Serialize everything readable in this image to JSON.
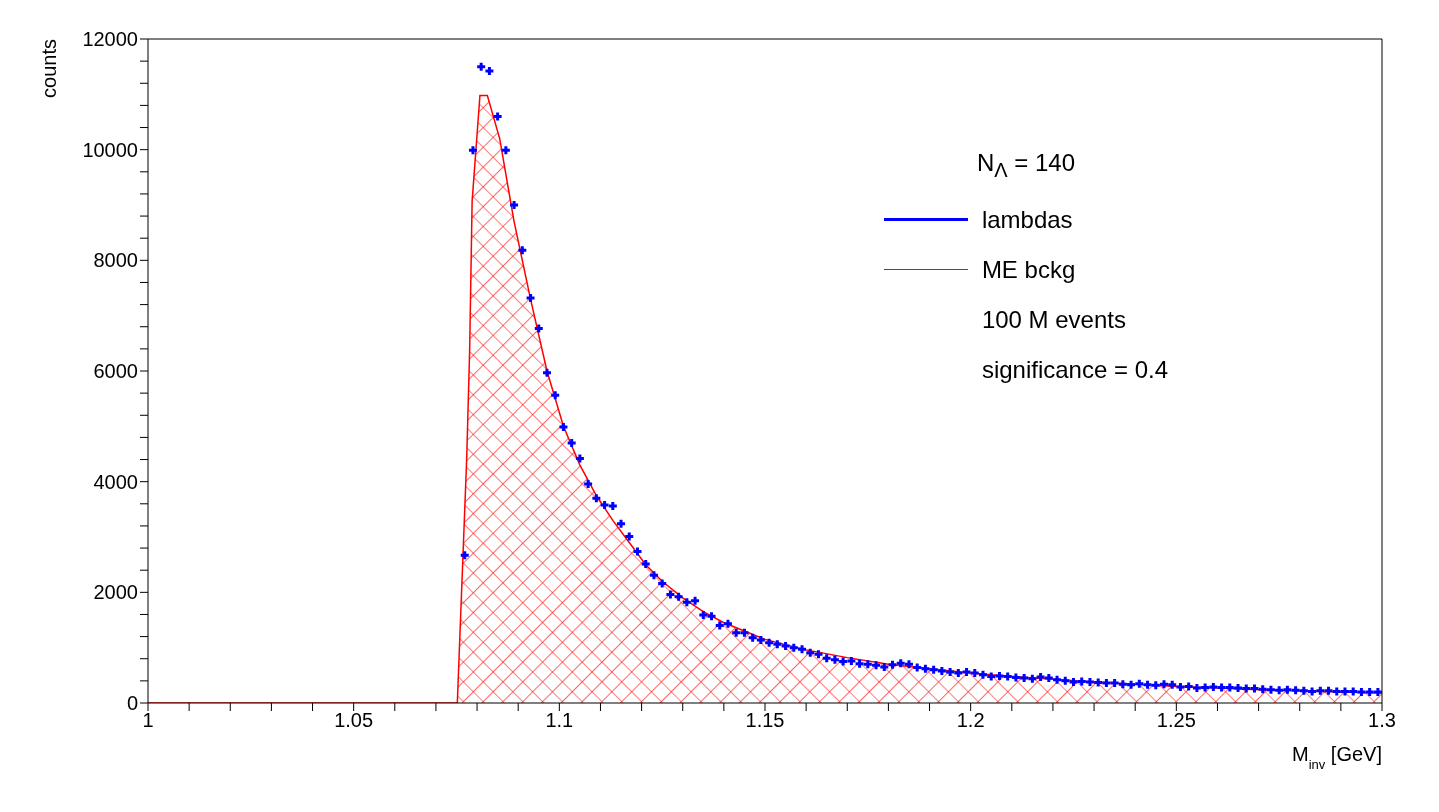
{
  "chart_data": {
    "type": "area",
    "xlabel": "M$_{inv}$ [GeV]",
    "ylabel": "counts",
    "xlim": [
      1,
      1.3
    ],
    "xticks": [
      1,
      {
        "value": 1.01,
        "label": null
      },
      {
        "value": 1.02,
        "label": null
      },
      {
        "value": 1.03,
        "label": null
      },
      {
        "value": 1.04,
        "label": null
      },
      1.05,
      {
        "value": 1.06,
        "label": null
      },
      {
        "value": 1.07,
        "label": null
      },
      {
        "value": 1.08,
        "label": null
      },
      {
        "value": 1.09,
        "label": null
      },
      1.1,
      {
        "value": 1.11,
        "label": null
      },
      {
        "value": 1.12,
        "label": null
      },
      {
        "value": 1.13,
        "label": null
      },
      {
        "value": 1.14,
        "label": null
      },
      1.15,
      {
        "value": 1.16,
        "label": null
      },
      {
        "value": 1.17,
        "label": null
      },
      {
        "value": 1.18,
        "label": null
      },
      {
        "value": 1.19,
        "label": null
      },
      1.2,
      {
        "value": 1.21,
        "label": null
      },
      {
        "value": 1.22,
        "label": null
      },
      {
        "value": 1.23,
        "label": null
      },
      {
        "value": 1.24,
        "label": null
      },
      1.25,
      {
        "value": 1.26,
        "label": null
      },
      {
        "value": 1.27,
        "label": null
      },
      {
        "value": 1.28,
        "label": null
      },
      {
        "value": 1.29,
        "label": null
      },
      1.3
    ],
    "ylim": [
      0,
      12000
    ],
    "yticks": [
      0,
      {
        "value": 400,
        "label": null
      },
      {
        "value": 800,
        "label": null
      },
      {
        "value": 1200,
        "label": null
      },
      {
        "value": 1600,
        "label": null
      },
      2000,
      {
        "value": 2400,
        "label": null
      },
      {
        "value": 2800,
        "label": null
      },
      {
        "value": 3200,
        "label": null
      },
      {
        "value": 3600,
        "label": null
      },
      4000,
      {
        "value": 4400,
        "label": null
      },
      {
        "value": 4800,
        "label": null
      },
      {
        "value": 5200,
        "label": null
      },
      {
        "value": 5600,
        "label": null
      },
      6000,
      {
        "value": 6400,
        "label": null
      },
      {
        "value": 6800,
        "label": null
      },
      {
        "value": 7200,
        "label": null
      },
      {
        "value": 7600,
        "label": null
      },
      8000,
      {
        "value": 8400,
        "label": null
      },
      {
        "value": 8800,
        "label": null
      },
      {
        "value": 9200,
        "label": null
      },
      {
        "value": 9600,
        "label": null
      },
      10000,
      {
        "value": 10400,
        "label": null
      },
      {
        "value": 10800,
        "label": null
      },
      {
        "value": 11200,
        "label": null
      },
      {
        "value": 11600,
        "label": null
      },
      12000
    ],
    "legend": "top right",
    "annotations": [
      "N$_{Λ}$ = 140",
      "100 M events",
      "significance = 0.4"
    ],
    "series": [
      {
        "type": "scatter",
        "name": "lambdas",
        "color": "#0000ff",
        "marker": "cross",
        "x": [
          1.077,
          1.079,
          1.081,
          1.083,
          1.085,
          1.087,
          1.089,
          1.091,
          1.093,
          1.095,
          1.097,
          1.099,
          1.101,
          1.103,
          1.105,
          1.107,
          1.109,
          1.111,
          1.113,
          1.115,
          1.117,
          1.119,
          1.121,
          1.123,
          1.125,
          1.127,
          1.129,
          1.131,
          1.133,
          1.135,
          1.137,
          1.139,
          1.141,
          1.143,
          1.145,
          1.147,
          1.149,
          1.151,
          1.153,
          1.155,
          1.157,
          1.159,
          1.161,
          1.163,
          1.165,
          1.167,
          1.169,
          1.171,
          1.173,
          1.175,
          1.177,
          1.179,
          1.181,
          1.183,
          1.185,
          1.187,
          1.189,
          1.191,
          1.193,
          1.195,
          1.197,
          1.199,
          1.201,
          1.203,
          1.205,
          1.207,
          1.209,
          1.211,
          1.213,
          1.215,
          1.217,
          1.219,
          1.221,
          1.223,
          1.225,
          1.227,
          1.229,
          1.231,
          1.233,
          1.235,
          1.237,
          1.239,
          1.241,
          1.243,
          1.245,
          1.247,
          1.249,
          1.251,
          1.253,
          1.255,
          1.257,
          1.259,
          1.261,
          1.263,
          1.265,
          1.267,
          1.269,
          1.271,
          1.273,
          1.275,
          1.277,
          1.279,
          1.281,
          1.283,
          1.285,
          1.287,
          1.289,
          1.291,
          1.293,
          1.295,
          1.297,
          1.299
        ],
        "values": [
          2670,
          9990,
          11500,
          11420,
          10600,
          9990,
          9000,
          8180,
          7320,
          6770,
          5970,
          5560,
          4990,
          4700,
          4420,
          3960,
          3700,
          3580,
          3560,
          3240,
          3010,
          2740,
          2510,
          2310,
          2160,
          1960,
          1920,
          1820,
          1850,
          1590,
          1570,
          1400,
          1430,
          1270,
          1270,
          1180,
          1140,
          1090,
          1060,
          1030,
          1000,
          970,
          910,
          880,
          810,
          780,
          750,
          760,
          710,
          700,
          680,
          650,
          690,
          720,
          700,
          640,
          620,
          600,
          580,
          560,
          540,
          560,
          540,
          510,
          480,
          490,
          480,
          460,
          450,
          440,
          470,
          450,
          420,
          400,
          380,
          390,
          380,
          370,
          360,
          360,
          340,
          330,
          350,
          330,
          320,
          340,
          330,
          290,
          300,
          270,
          280,
          290,
          280,
          280,
          270,
          260,
          260,
          250,
          240,
          230,
          240,
          230,
          220,
          210,
          220,
          220,
          210,
          210,
          210,
          200,
          200,
          200
        ]
      },
      {
        "name": "ME bckg",
        "color": "#ff0000",
        "x": [
          1,
          1.0752,
          1.0775,
          1.0782,
          1.0788,
          1.0807,
          1.0825,
          1.0855,
          1.089,
          1.093,
          1.097,
          1.101,
          1.105,
          1.109,
          1.113,
          1.117,
          1.121,
          1.125,
          1.13,
          1.135,
          1.14,
          1.145,
          1.15,
          1.16,
          1.17,
          1.18,
          1.19,
          1.2,
          1.21,
          1.22,
          1.23,
          1.24,
          1.25,
          1.26,
          1.27,
          1.28,
          1.29,
          1.3
        ],
        "values": [
          0,
          0,
          4460,
          6390,
          9070,
          10980,
          10980,
          10200,
          8700,
          7300,
          6000,
          5000,
          4300,
          3750,
          3300,
          2900,
          2500,
          2200,
          1900,
          1650,
          1450,
          1300,
          1150,
          960,
          820,
          700,
          620,
          540,
          480,
          430,
          380,
          340,
          300,
          270,
          240,
          220,
          200,
          180
        ]
      }
    ]
  }
}
